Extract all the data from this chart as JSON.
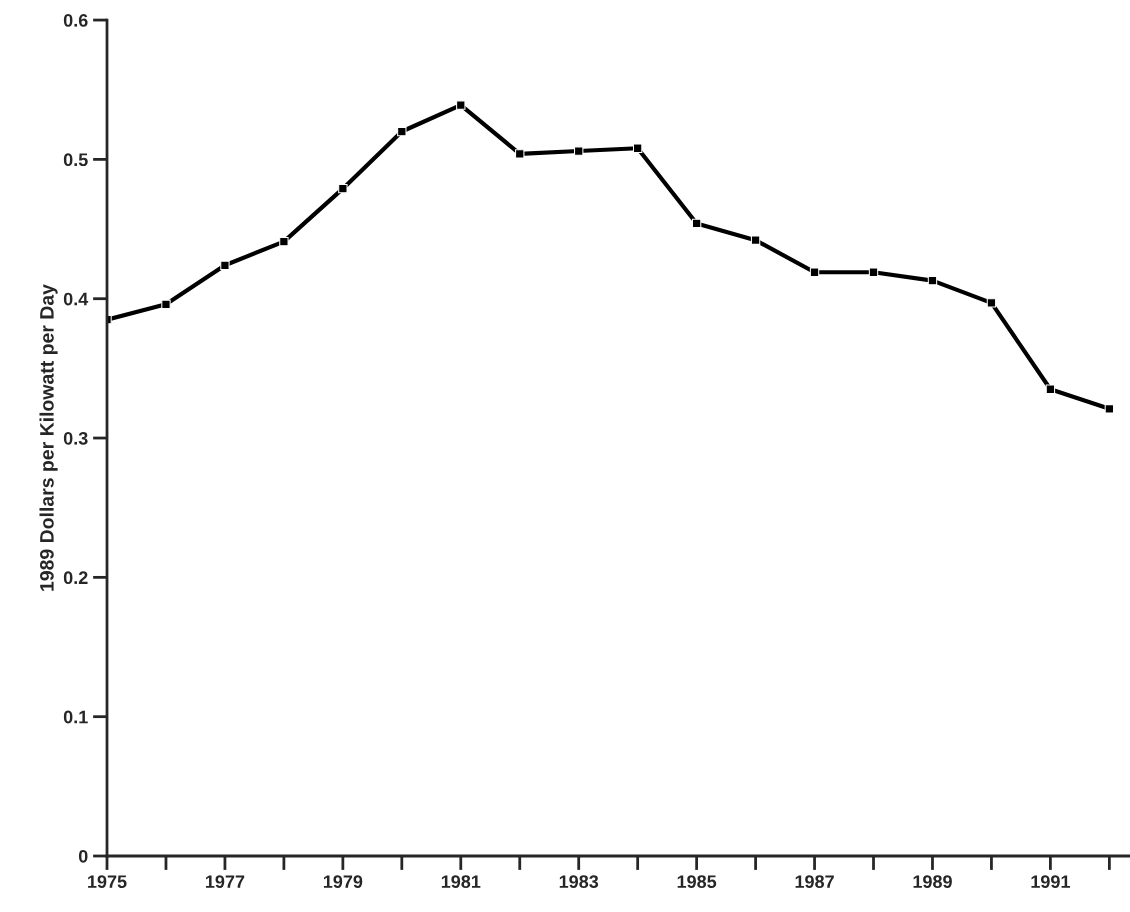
{
  "chart_data": {
    "type": "line",
    "ylabel": "1989 Dollars per Kilowatt per Day",
    "x": [
      1975,
      1976,
      1977,
      1978,
      1979,
      1980,
      1981,
      1982,
      1983,
      1984,
      1985,
      1986,
      1987,
      1988,
      1989,
      1990,
      1991,
      1992
    ],
    "series": [
      {
        "color": "#000000",
        "values": [
          0.385,
          0.396,
          0.424,
          0.441,
          0.479,
          0.52,
          0.539,
          0.504,
          0.506,
          0.508,
          0.454,
          0.442,
          0.419,
          0.419,
          0.413,
          0.397,
          0.335,
          0.321
        ]
      }
    ],
    "xlim": [
      1975,
      1992.35
    ],
    "ylim": [
      0,
      0.6
    ],
    "xticks": [
      1975,
      {
        "value": 1976,
        "label": null
      },
      1977,
      {
        "value": 1978,
        "label": null
      },
      1979,
      {
        "value": 1980,
        "label": null
      },
      1981,
      {
        "value": 1982,
        "label": null
      },
      1983,
      {
        "value": 1984,
        "label": null
      },
      1985,
      {
        "value": 1986,
        "label": null
      },
      1987,
      {
        "value": 1988,
        "label": null
      },
      1989,
      {
        "value": 1990,
        "label": null
      },
      1991,
      {
        "value": 1992,
        "label": null
      }
    ],
    "yticks": [
      0,
      0.1,
      0.2,
      0.3,
      0.4,
      0.5,
      0.6
    ],
    "marker": "square",
    "line_style": "solid",
    "grid": false,
    "legend": false
  }
}
